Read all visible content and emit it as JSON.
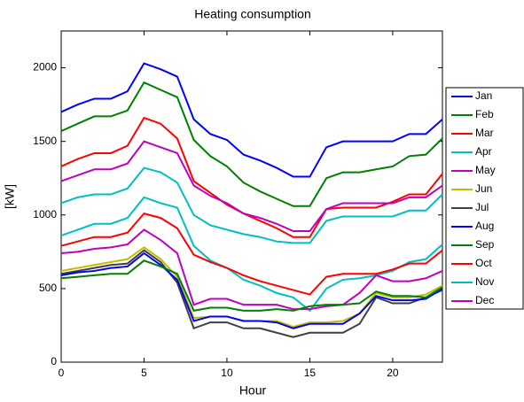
{
  "chart_data": {
    "type": "line",
    "title": "Heating consumption",
    "xlabel": "Hour",
    "ylabel": "[kW]",
    "x": [
      0,
      1,
      2,
      3,
      4,
      5,
      6,
      7,
      8,
      9,
      10,
      11,
      12,
      13,
      14,
      15,
      16,
      17,
      18,
      19,
      20,
      21,
      22,
      23
    ],
    "xlim": [
      0,
      23
    ],
    "xticks": [
      0,
      5,
      10,
      15,
      20
    ],
    "ylim": [
      0,
      2250
    ],
    "yticks": [
      0,
      500,
      1000,
      1500,
      2000
    ],
    "grid": false,
    "legend": "outside-right",
    "series": [
      {
        "name": "Jan",
        "color": "#0000ff",
        "values": [
          1700,
          1750,
          1790,
          1790,
          1840,
          2030,
          1990,
          1940,
          1650,
          1550,
          1510,
          1410,
          1370,
          1320,
          1260,
          1260,
          1460,
          1500,
          1500,
          1500,
          1500,
          1550,
          1550,
          1650
        ]
      },
      {
        "name": "Feb",
        "color": "#008000",
        "values": [
          1570,
          1620,
          1670,
          1670,
          1710,
          1900,
          1850,
          1800,
          1510,
          1400,
          1330,
          1220,
          1160,
          1110,
          1060,
          1060,
          1250,
          1290,
          1290,
          1310,
          1330,
          1400,
          1410,
          1520
        ]
      },
      {
        "name": "Mar",
        "color": "#ff0000",
        "values": [
          1330,
          1380,
          1420,
          1420,
          1470,
          1660,
          1620,
          1520,
          1230,
          1150,
          1070,
          1010,
          960,
          910,
          850,
          850,
          1040,
          1050,
          1050,
          1050,
          1090,
          1140,
          1140,
          1280
        ]
      },
      {
        "name": "Apr",
        "color": "#00bfbf",
        "values": [
          860,
          900,
          940,
          940,
          980,
          1120,
          1080,
          1050,
          790,
          690,
          640,
          560,
          520,
          470,
          440,
          350,
          500,
          560,
          570,
          590,
          620,
          680,
          700,
          800
        ]
      },
      {
        "name": "May",
        "color": "#bf00bf",
        "values": [
          740,
          750,
          770,
          780,
          800,
          900,
          830,
          740,
          390,
          430,
          430,
          390,
          390,
          390,
          360,
          360,
          380,
          390,
          470,
          590,
          550,
          550,
          570,
          620
        ]
      },
      {
        "name": "Jun",
        "color": "#bfbf00",
        "values": [
          620,
          640,
          660,
          680,
          700,
          780,
          700,
          580,
          300,
          310,
          310,
          280,
          280,
          280,
          240,
          270,
          270,
          280,
          330,
          470,
          440,
          440,
          460,
          520
        ]
      },
      {
        "name": "Jul",
        "color": "#404040",
        "values": [
          600,
          620,
          640,
          660,
          670,
          760,
          680,
          540,
          230,
          270,
          270,
          230,
          230,
          200,
          170,
          200,
          200,
          200,
          260,
          440,
          400,
          400,
          440,
          490
        ]
      },
      {
        "name": "Aug",
        "color": "#0000ff",
        "values": [
          590,
          610,
          620,
          640,
          650,
          740,
          660,
          560,
          280,
          310,
          310,
          280,
          280,
          270,
          230,
          260,
          260,
          260,
          330,
          450,
          420,
          420,
          430,
          500
        ]
      },
      {
        "name": "Sep",
        "color": "#008000",
        "values": [
          570,
          580,
          590,
          600,
          600,
          690,
          650,
          600,
          350,
          370,
          370,
          350,
          350,
          360,
          350,
          380,
          390,
          390,
          400,
          480,
          450,
          450,
          440,
          510
        ]
      },
      {
        "name": "Oct",
        "color": "#ff0000",
        "values": [
          790,
          820,
          850,
          850,
          880,
          1010,
          980,
          910,
          730,
          680,
          640,
          590,
          550,
          520,
          490,
          460,
          580,
          600,
          600,
          600,
          630,
          670,
          670,
          760
        ]
      },
      {
        "name": "Nov",
        "color": "#00bfbf",
        "values": [
          1080,
          1120,
          1140,
          1140,
          1180,
          1320,
          1290,
          1220,
          1000,
          930,
          900,
          870,
          850,
          820,
          810,
          810,
          960,
          990,
          990,
          990,
          990,
          1030,
          1030,
          1140
        ]
      },
      {
        "name": "Dec",
        "color": "#bf00bf",
        "values": [
          1230,
          1270,
          1310,
          1310,
          1350,
          1500,
          1460,
          1420,
          1200,
          1130,
          1080,
          1010,
          980,
          940,
          890,
          890,
          1040,
          1080,
          1080,
          1080,
          1080,
          1120,
          1120,
          1200
        ]
      }
    ]
  }
}
